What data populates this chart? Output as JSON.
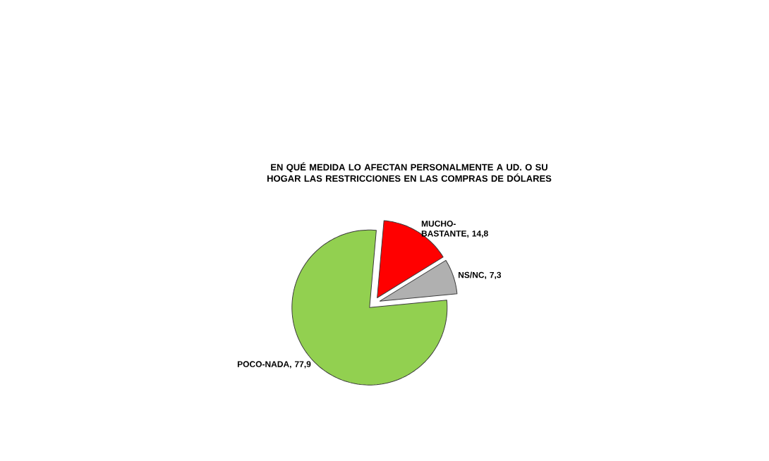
{
  "chart_data": {
    "type": "pie",
    "title": "EN QUÉ MEDIDA LO AFECTAN PERSONALMENTE A UD. O SU HOGAR LAS RESTRICCIONES EN LAS COMPRAS DE DÓLARES",
    "categories": [
      "MUCHO-BASTANTE, 14,8",
      "NS/NC, 7,3",
      "POCO-NADA, 77,9"
    ],
    "values": [
      14.8,
      7.3,
      77.9
    ],
    "colors": [
      "#ff0000",
      "#b0b0b0",
      "#92d050"
    ]
  }
}
